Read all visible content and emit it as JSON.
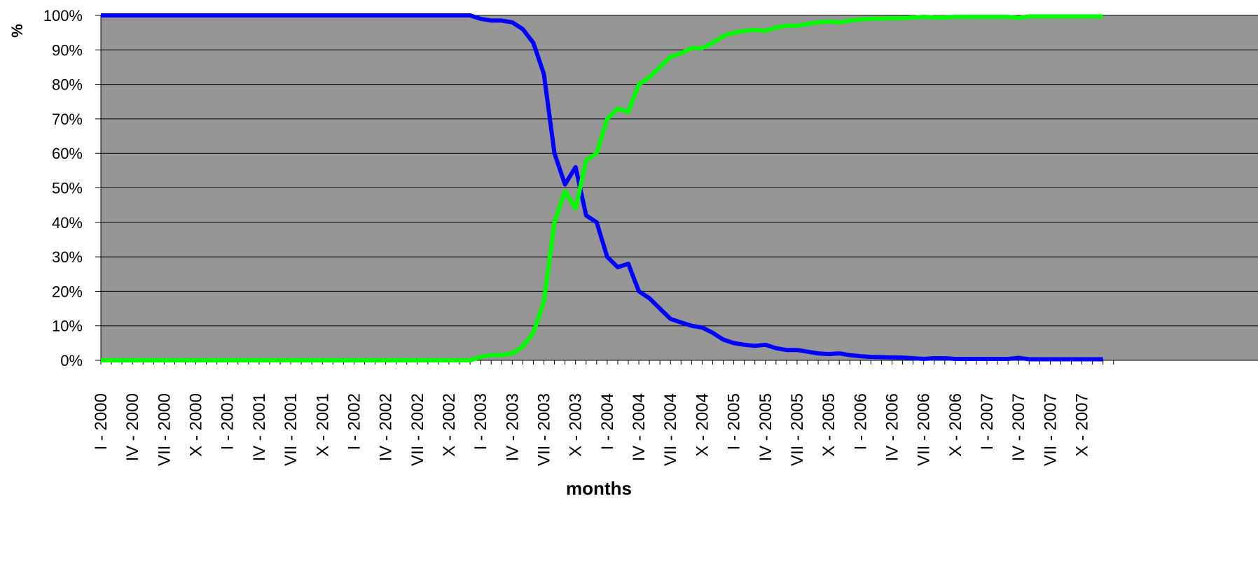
{
  "chart_data": {
    "type": "line",
    "xlabel": "months",
    "ylabel": "%",
    "ylim": [
      0,
      100
    ],
    "y_ticks": [
      "0%",
      "10%",
      "20%",
      "30%",
      "40%",
      "50%",
      "60%",
      "70%",
      "80%",
      "90%",
      "100%"
    ],
    "x_tick_labels": [
      "I - 2000",
      "IV - 2000",
      "VII - 2000",
      "X - 2000",
      "I - 2001",
      "IV - 2001",
      "VII - 2001",
      "X - 2001",
      "I - 2002",
      "IV - 2002",
      "VII - 2002",
      "X - 2002",
      "I - 2003",
      "IV - 2003",
      "VII - 2003",
      "X - 2003",
      "I - 2004",
      "IV - 2004",
      "VII - 2004",
      "X - 2004",
      "I - 2005",
      "IV - 2005",
      "VII - 2005",
      "X - 2005",
      "I - 2006",
      "IV - 2006",
      "VII - 2006",
      "X - 2006",
      "I - 2007",
      "IV - 2007",
      "VII - 2007",
      "X - 2007"
    ],
    "grid": true,
    "plot_background": "#969696",
    "series": [
      {
        "color": "#0000ff",
        "points": [
          [
            "I - 2000",
            100
          ],
          [
            "X - 2002",
            100
          ],
          [
            "XII - 2002",
            100
          ],
          [
            "I - 2003",
            99
          ],
          [
            "II - 2003",
            98.5
          ],
          [
            "III - 2003",
            98.5
          ],
          [
            "IV - 2003",
            98
          ],
          [
            "V - 2003",
            96
          ],
          [
            "VI - 2003",
            92
          ],
          [
            "VII - 2003",
            83
          ],
          [
            "VIII - 2003",
            60
          ],
          [
            "IX - 2003",
            51
          ],
          [
            "X - 2003",
            56
          ],
          [
            "XI - 2003",
            42
          ],
          [
            "XII - 2003",
            40
          ],
          [
            "I - 2004",
            30
          ],
          [
            "II - 2004",
            27
          ],
          [
            "III - 2004",
            28
          ],
          [
            "IV - 2004",
            20
          ],
          [
            "V - 2004",
            18
          ],
          [
            "VI - 2004",
            15
          ],
          [
            "VII - 2004",
            12
          ],
          [
            "VIII - 2004",
            11
          ],
          [
            "IX - 2004",
            10
          ],
          [
            "X - 2004",
            9.5
          ],
          [
            "XI - 2004",
            8
          ],
          [
            "XII - 2004",
            6
          ],
          [
            "I - 2005",
            5
          ],
          [
            "II - 2005",
            4.5
          ],
          [
            "III - 2005",
            4.2
          ],
          [
            "IV - 2005",
            4.5
          ],
          [
            "V - 2005",
            3.5
          ],
          [
            "VI - 2005",
            3
          ],
          [
            "VII - 2005",
            3
          ],
          [
            "VIII - 2005",
            2.5
          ],
          [
            "IX - 2005",
            2
          ],
          [
            "X - 2005",
            1.8
          ],
          [
            "XI - 2005",
            2
          ],
          [
            "XII - 2005",
            1.5
          ],
          [
            "I - 2006",
            1.2
          ],
          [
            "II - 2006",
            1
          ],
          [
            "V - 2006",
            0.8
          ],
          [
            "VI - 2006",
            0.6
          ],
          [
            "VII - 2006",
            0.4
          ],
          [
            "VIII - 2006",
            0.6
          ],
          [
            "IX - 2006",
            0.6
          ],
          [
            "X - 2006",
            0.4
          ],
          [
            "III - 2007",
            0.4
          ],
          [
            "IV - 2007",
            0.7
          ],
          [
            "V - 2007",
            0.3
          ],
          [
            "XII - 2007",
            0.3
          ]
        ]
      },
      {
        "color": "#00ff00",
        "points": [
          [
            "I - 2000",
            0
          ],
          [
            "X - 2002",
            0
          ],
          [
            "XII - 2002",
            0
          ],
          [
            "I - 2003",
            1
          ],
          [
            "II - 2003",
            1.5
          ],
          [
            "III - 2003",
            1.5
          ],
          [
            "IV - 2003",
            2
          ],
          [
            "V - 2003",
            4
          ],
          [
            "VI - 2003",
            8
          ],
          [
            "VII - 2003",
            17
          ],
          [
            "VIII - 2003",
            40
          ],
          [
            "IX - 2003",
            49
          ],
          [
            "X - 2003",
            44
          ],
          [
            "XI - 2003",
            58
          ],
          [
            "XII - 2003",
            60
          ],
          [
            "I - 2004",
            70
          ],
          [
            "II - 2004",
            73
          ],
          [
            "III - 2004",
            72
          ],
          [
            "IV - 2004",
            80
          ],
          [
            "V - 2004",
            82
          ],
          [
            "VI - 2004",
            85
          ],
          [
            "VII - 2004",
            88
          ],
          [
            "VIII - 2004",
            89
          ],
          [
            "IX - 2004",
            90.5
          ],
          [
            "X - 2004",
            90.5
          ],
          [
            "XI - 2004",
            92
          ],
          [
            "XII - 2004",
            94
          ],
          [
            "I - 2005",
            95
          ],
          [
            "II - 2005",
            95.5
          ],
          [
            "III - 2005",
            95.8
          ],
          [
            "IV - 2005",
            95.5
          ],
          [
            "V - 2005",
            96.5
          ],
          [
            "VI - 2005",
            97
          ],
          [
            "VII - 2005",
            97
          ],
          [
            "VIII - 2005",
            97.5
          ],
          [
            "IX - 2005",
            98
          ],
          [
            "X - 2005",
            98.2
          ],
          [
            "XI - 2005",
            98
          ],
          [
            "XII - 2005",
            98.5
          ],
          [
            "I - 2006",
            98.8
          ],
          [
            "II - 2006",
            99
          ],
          [
            "V - 2006",
            99.2
          ],
          [
            "VI - 2006",
            99.4
          ],
          [
            "VII - 2006",
            99.6
          ],
          [
            "VIII - 2006",
            99.4
          ],
          [
            "IX - 2006",
            99.4
          ],
          [
            "X - 2006",
            99.6
          ],
          [
            "III - 2007",
            99.6
          ],
          [
            "IV - 2007",
            99.3
          ],
          [
            "V - 2007",
            99.7
          ],
          [
            "XII - 2007",
            99.7
          ]
        ]
      }
    ]
  }
}
